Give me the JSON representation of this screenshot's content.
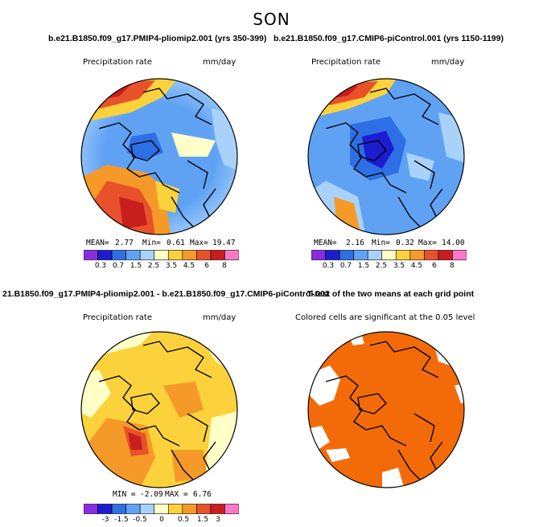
{
  "figure": {
    "season": "SON"
  },
  "cases": {
    "case1": "b.e21.B1850.f09_g17.PMIP4-pliomip2.001 (yrs 350-399)",
    "case2": "b.e21.B1850.f09_g17.CMIP6-piControl.001 (yrs 1150-1199)",
    "diff": "21.B1850.f09_g17.PMIP4-pliomip2.001 - b.e21.B1850.f09_g17.CMIP6-piControl.001",
    "ttest": "T-test of the two means at each grid point"
  },
  "chart_data": [
    {
      "type": "heatmap",
      "title": "b.e21.B1850.f09_g17.PMIP4-pliomip2.001 (yrs 350-399)",
      "variable": "Precipitation rate",
      "units": "mm/day",
      "projection": "north polar stereographic",
      "stats": {
        "mean": "2.77",
        "min": "0.61",
        "max": "19.47"
      },
      "colorbar": {
        "levels": [
          "0.3",
          "0.7",
          "1.5",
          "2.5",
          "3.5",
          "4.5",
          "6",
          "8"
        ],
        "colors": [
          "#8a2be2",
          "#1c1cd0",
          "#2e6fe6",
          "#5fa2f4",
          "#a9d2fb",
          "#ffffc8",
          "#fcd23c",
          "#f59a28",
          "#e8512a",
          "#c81e1e",
          "#ff78c8"
        ]
      }
    },
    {
      "type": "heatmap",
      "title": "b.e21.B1850.f09_g17.CMIP6-piControl.001 (yrs 1150-1199)",
      "variable": "Precipitation rate",
      "units": "mm/day",
      "projection": "north polar stereographic",
      "stats": {
        "mean": "2.16",
        "min": "0.32",
        "max": "14.00"
      },
      "colorbar": {
        "levels": [
          "0.3",
          "0.7",
          "1.5",
          "2.5",
          "3.5",
          "4.5",
          "6",
          "8"
        ],
        "colors": [
          "#8a2be2",
          "#1c1cd0",
          "#2e6fe6",
          "#5fa2f4",
          "#a9d2fb",
          "#ffffc8",
          "#fcd23c",
          "#f59a28",
          "#e8512a",
          "#c81e1e",
          "#ff78c8"
        ]
      }
    },
    {
      "type": "heatmap",
      "title": "21.B1850.f09_g17.PMIP4-pliomip2.001 - b.e21.B1850.f09_g17.CMIP6-piControl.001",
      "variable": "Precipitation rate",
      "units": "mm/day",
      "projection": "north polar stereographic",
      "stats": {
        "min": "-2.09",
        "max": "6.76"
      },
      "colorbar": {
        "levels": [
          "-3",
          "-1.5",
          "-0.5",
          "0",
          "0.5",
          "1.5",
          "3"
        ],
        "colors": [
          "#8a2be2",
          "#1c1cd0",
          "#2e6fe6",
          "#5fa2f4",
          "#a9d2fb",
          "#ffffc8",
          "#fcd23c",
          "#f59a28",
          "#e8512a",
          "#c81e1e",
          "#ff78c8"
        ]
      }
    },
    {
      "type": "heatmap",
      "title": "T-test of the two means at each grid point",
      "variable": "Colored cells are significant at the 0.05 level",
      "projection": "north polar stereographic",
      "fill_color": "#f36b08"
    }
  ]
}
